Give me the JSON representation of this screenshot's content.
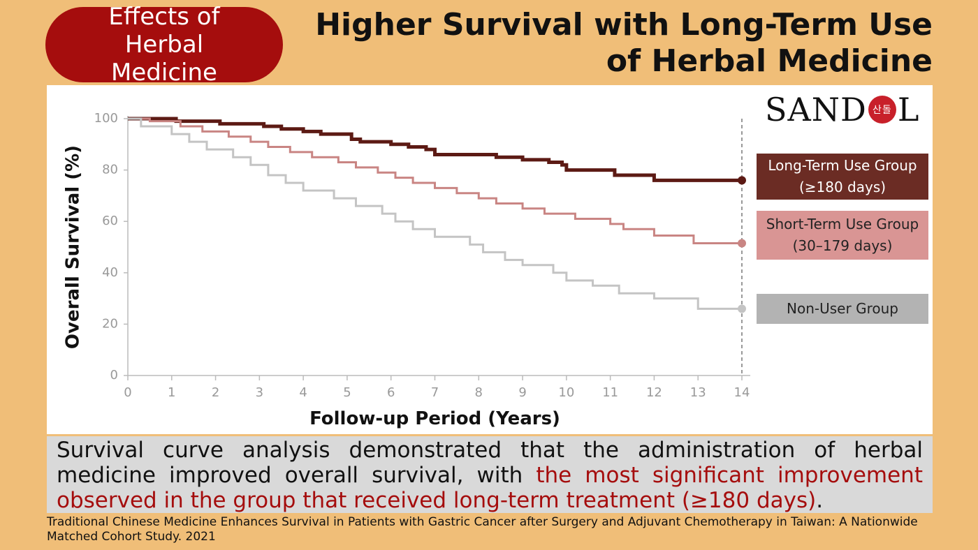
{
  "header": {
    "badge": "Effects of Herbal Medicine",
    "title": "Higher Survival with Long-Term Use of Herbal Medicine"
  },
  "logo": {
    "left": "SAND",
    "mark": "산돌",
    "right": "L"
  },
  "chart_data": {
    "type": "step",
    "y_label": "Overall Survival (%)",
    "x_label": "Follow-up Period (Years)",
    "xlim": [
      0,
      14
    ],
    "xticks": [
      0,
      1,
      2,
      3,
      4,
      5,
      6,
      7,
      8,
      9,
      10,
      11,
      12,
      13,
      14
    ],
    "ylim": [
      0,
      100
    ],
    "yticks": [
      0,
      20,
      40,
      60,
      80,
      100
    ],
    "series": [
      {
        "name": "Long-Term Use Group (≥180 days)",
        "color": "#5c1a14",
        "legend_color": "#6b2c24",
        "legend_text_color": "#ffffff",
        "x": [
          0,
          1.1,
          1.1,
          2.1,
          2.1,
          3.1,
          3.1,
          3.5,
          3.5,
          4,
          4,
          4.4,
          4.4,
          5.1,
          5.1,
          5.3,
          5.3,
          6,
          6,
          6.4,
          6.4,
          6.8,
          6.8,
          7,
          7,
          8.4,
          8.4,
          9,
          9,
          9.6,
          9.6,
          9.9,
          9.9,
          10,
          10,
          11.1,
          11.1,
          12,
          12,
          14
        ],
        "values": [
          100,
          100,
          99,
          99,
          98,
          98,
          97,
          97,
          96,
          96,
          95,
          95,
          94,
          94,
          92,
          92,
          91,
          91,
          90,
          90,
          89,
          89,
          88,
          88,
          86,
          86,
          85,
          85,
          84,
          84,
          83,
          83,
          82,
          82,
          80,
          80,
          78,
          78,
          76,
          76
        ]
      },
      {
        "name": "Short-Term Use Group (30–179 days)",
        "color": "#c98583",
        "legend_color": "#d99594",
        "legend_text_color": "#222222",
        "x": [
          0,
          0.5,
          0.5,
          1.2,
          1.2,
          1.7,
          1.7,
          2.3,
          2.3,
          2.8,
          2.8,
          3.2,
          3.2,
          3.7,
          3.7,
          4.2,
          4.2,
          4.8,
          4.8,
          5.2,
          5.2,
          5.7,
          5.7,
          6.1,
          6.1,
          6.5,
          6.5,
          7,
          7,
          7.5,
          7.5,
          8,
          8,
          8.4,
          8.4,
          9,
          9,
          9.5,
          9.5,
          10.2,
          10.2,
          11,
          11,
          11.3,
          11.3,
          12,
          12,
          12.9,
          12.9,
          14
        ],
        "values": [
          100,
          100,
          99,
          99,
          97,
          97,
          95,
          95,
          93,
          93,
          91,
          91,
          89,
          89,
          87,
          87,
          85,
          85,
          83,
          83,
          81,
          81,
          79,
          79,
          77,
          77,
          75,
          75,
          73,
          73,
          71,
          71,
          69,
          69,
          67,
          67,
          65,
          65,
          63,
          63,
          61,
          61,
          59,
          59,
          57,
          57,
          54.5,
          54.5,
          51.5,
          51.5
        ]
      },
      {
        "name": "Non-User Group",
        "color": "#c4c4c4",
        "legend_color": "#b3b3b3",
        "legend_text_color": "#222222",
        "x": [
          0,
          0.3,
          0.3,
          1,
          1,
          1.4,
          1.4,
          1.8,
          1.8,
          2.4,
          2.4,
          2.8,
          2.8,
          3.2,
          3.2,
          3.6,
          3.6,
          4,
          4,
          4.7,
          4.7,
          5.2,
          5.2,
          5.8,
          5.8,
          6.1,
          6.1,
          6.5,
          6.5,
          7,
          7,
          7.8,
          7.8,
          8.1,
          8.1,
          8.6,
          8.6,
          9,
          9,
          9.7,
          9.7,
          10,
          10,
          10.6,
          10.6,
          11.2,
          11.2,
          12,
          12,
          13,
          13,
          14
        ],
        "values": [
          100,
          100,
          97,
          97,
          94,
          94,
          91,
          91,
          88,
          88,
          85,
          85,
          82,
          82,
          78,
          78,
          75,
          75,
          72,
          72,
          69,
          69,
          66,
          66,
          63,
          63,
          60,
          60,
          57,
          57,
          54,
          54,
          51,
          51,
          48,
          48,
          45,
          45,
          43,
          43,
          40,
          40,
          37,
          37,
          35,
          35,
          32,
          32,
          30,
          30,
          26,
          26
        ]
      }
    ]
  },
  "summary": {
    "text": "Survival curve analysis demonstrated that the administration of herbal medicine improved overall survival, with ",
    "highlight": "the most significant improvement observed in the group that received long-term treatment (≥180 days)",
    "end": "."
  },
  "citation": "Traditional Chinese Medicine Enhances Survival in Patients with Gastric Cancer after Surgery and Adjuvant Chemotherapy in Taiwan: A Nationwide Matched Cohort Study. 2021"
}
